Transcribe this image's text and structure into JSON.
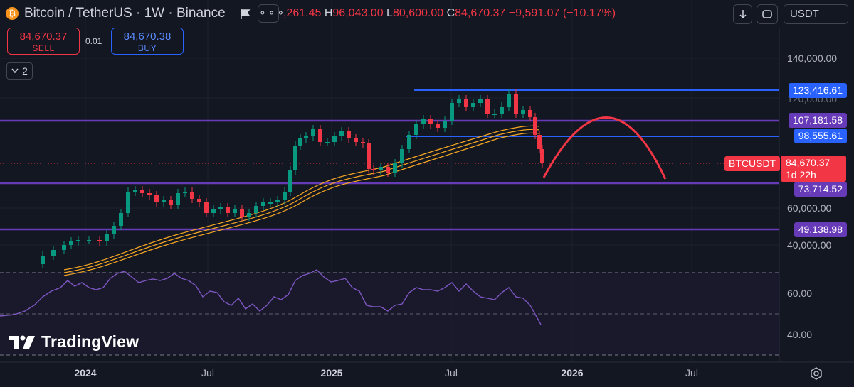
{
  "header": {
    "symbol_title": "Bitcoin / TetherUS · 1W · Binance",
    "coin_glyph": "₿",
    "ohlc_open_tail": ",261.45",
    "ohlc_high_label": "H",
    "ohlc_high": "96,043.00",
    "ohlc_low_label": "L",
    "ohlc_low": "80,600.00",
    "ohlc_close_label": "C",
    "ohlc_close": "84,670.37",
    "ohlc_change": "−9,591.07 (−10.17%)",
    "currency": "USDT"
  },
  "trade": {
    "sell_price": "84,670.37",
    "sell_label": "SELL",
    "spread": "0.01",
    "buy_price": "84,670.38",
    "buy_label": "BUY"
  },
  "indicators_count": "2",
  "price_axis": {
    "ticks": [
      "140,000.00",
      "120,000.00",
      "60,000.00",
      "40,000.00"
    ],
    "levels": [
      {
        "value": "123,416.61",
        "color": "#2962ff"
      },
      {
        "value": "107,181.58",
        "color": "#673ab7"
      },
      {
        "value": "98,555.61",
        "color": "#2962ff"
      },
      {
        "value": "73,714.52",
        "color": "#673ab7"
      },
      {
        "value": "49,138.98",
        "color": "#673ab7"
      }
    ],
    "symbol_tag": "BTCUSDT",
    "last_price": "84,670.37",
    "countdown": "1d 22h"
  },
  "rsi_axis": {
    "ticks": [
      "60.00",
      "40.00"
    ]
  },
  "time_axis": {
    "labels": [
      {
        "text": "2024",
        "bold": true
      },
      {
        "text": "Jul",
        "bold": false
      },
      {
        "text": "2025",
        "bold": true
      },
      {
        "text": "Jul",
        "bold": false
      },
      {
        "text": "2026",
        "bold": true
      },
      {
        "text": "Jul",
        "bold": false
      }
    ]
  },
  "brand": {
    "name": "TradingView"
  },
  "colors": {
    "up": "#089981",
    "down": "#f23645",
    "ma": "#f5a623",
    "rsi": "#7e57c2",
    "arc": "#f23645"
  }
}
